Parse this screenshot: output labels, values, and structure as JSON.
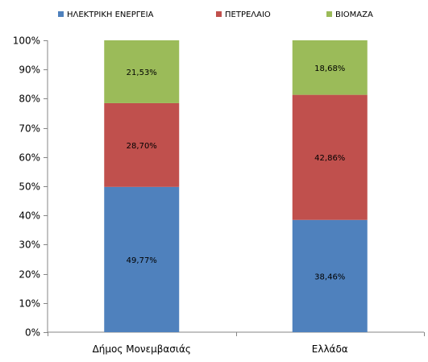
{
  "chart_data": {
    "type": "bar",
    "stacked": true,
    "percent_stacked": true,
    "categories": [
      "Δήμος Μονεμβασιάς",
      "Ελλάδα"
    ],
    "series": [
      {
        "name": "ΗΛΕΚΤΡΙΚΗ ΕΝΕΡΓΕΙΑ",
        "values": [
          49.77,
          38.46
        ],
        "labels": [
          "49,77%",
          "38,46%"
        ],
        "color": "#4f81bd"
      },
      {
        "name": "ΠΕΤΡΕΛΑΙΟ",
        "values": [
          28.7,
          42.86
        ],
        "labels": [
          "28,70%",
          "42,86%"
        ],
        "color": "#c0504d"
      },
      {
        "name": "ΒΙΟΜΑΖΑ",
        "values": [
          21.53,
          18.68
        ],
        "labels": [
          "21,53%",
          "18,68%"
        ],
        "color": "#9bbb59"
      }
    ],
    "ylim": [
      0,
      100
    ],
    "y_ticks": [
      0,
      10,
      20,
      30,
      40,
      50,
      60,
      70,
      80,
      90,
      100
    ],
    "y_tick_labels": [
      "0%",
      "10%",
      "20%",
      "30%",
      "40%",
      "50%",
      "60%",
      "70%",
      "80%",
      "90%",
      "100%"
    ],
    "legend_position": "top",
    "grid": false
  }
}
